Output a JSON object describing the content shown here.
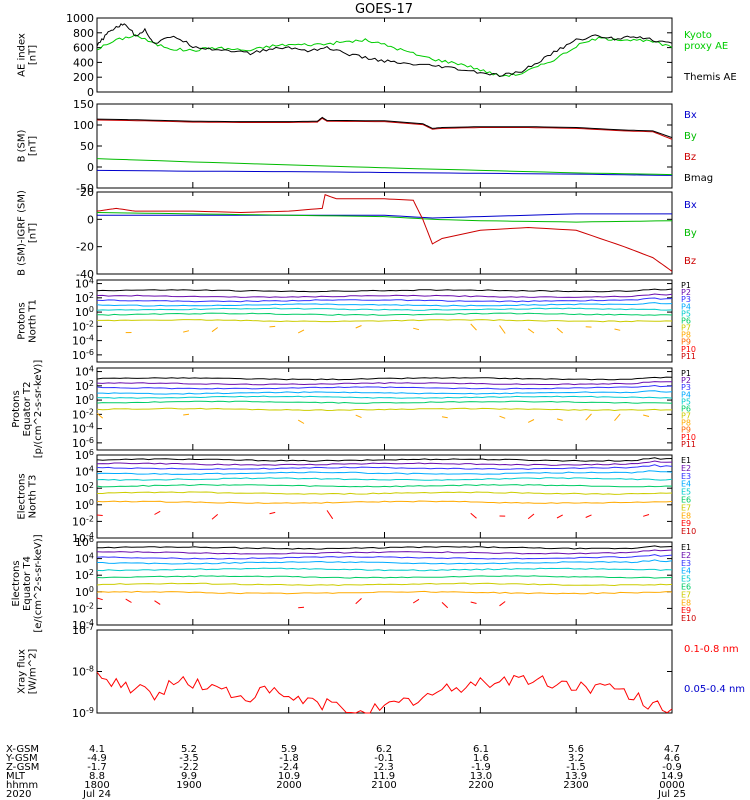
{
  "chart_data": {
    "type": "line",
    "title": "GOES-17",
    "time_range_hours": [
      18.0,
      24.0
    ],
    "panels": [
      {
        "id": "ae",
        "ylabel": [
          "AE index",
          "[nT]"
        ],
        "scale": "linear",
        "ylim": [
          0,
          1000
        ],
        "ticks": [
          0,
          200,
          400,
          600,
          800,
          1000
        ],
        "tick_labels": [
          "0",
          "200",
          "400",
          "600",
          "800",
          "1000"
        ],
        "legend": [
          {
            "label": "Kyoto",
            "color": "#00cc00"
          },
          {
            "label": "proxy AE",
            "color": "#00cc00"
          },
          {
            "label": "Themis AE",
            "color": "#000000"
          }
        ],
        "series": [
          {
            "name": "Kyoto proxy AE",
            "color": "#00cc00",
            "x": [
              18.0,
              18.2,
              18.4,
              18.6,
              18.8,
              19.0,
              19.2,
              19.4,
              19.6,
              19.8,
              20.0,
              20.2,
              20.4,
              20.6,
              20.8,
              21.0,
              21.2,
              21.4,
              21.6,
              21.8,
              22.0,
              22.2,
              22.4,
              22.6,
              22.8,
              23.0,
              23.2,
              23.4,
              23.6,
              23.8,
              24.0
            ],
            "y": [
              580,
              700,
              770,
              650,
              580,
              560,
              600,
              580,
              560,
              620,
              640,
              640,
              650,
              680,
              700,
              640,
              560,
              480,
              420,
              380,
              300,
              220,
              240,
              340,
              460,
              620,
              720,
              720,
              700,
              680,
              600
            ]
          },
          {
            "name": "Themis AE",
            "color": "#000000",
            "x": [
              18.0,
              18.1,
              18.2,
              18.3,
              18.4,
              18.5,
              18.6,
              18.8,
              19.0,
              19.2,
              19.4,
              19.6,
              19.8,
              20.0,
              20.2,
              20.4,
              20.6,
              20.8,
              21.0,
              21.2,
              21.4,
              21.6,
              21.8,
              22.0,
              22.2,
              22.4,
              22.6,
              22.8,
              23.0,
              23.2,
              23.4,
              23.6,
              23.8,
              24.0
            ],
            "y": [
              620,
              780,
              880,
              920,
              760,
              840,
              650,
              760,
              620,
              580,
              560,
              520,
              580,
              600,
              560,
              600,
              520,
              460,
              420,
              380,
              360,
              340,
              300,
              260,
              220,
              260,
              400,
              560,
              700,
              760,
              720,
              760,
              700,
              660
            ]
          }
        ]
      },
      {
        "id": "b",
        "ylabel": [
          "B (SM)",
          "[nT]"
        ],
        "scale": "linear",
        "ylim": [
          -50,
          150
        ],
        "ticks": [
          -50,
          0,
          50,
          100,
          150
        ],
        "tick_labels": [
          "-50",
          "0",
          "50",
          "100",
          "150"
        ],
        "legend": [
          {
            "label": "Bx",
            "color": "#0000cc"
          },
          {
            "label": "By",
            "color": "#00bb00"
          },
          {
            "label": "Bz",
            "color": "#cc0000"
          },
          {
            "label": "Bmag",
            "color": "#000000"
          }
        ],
        "series": [
          {
            "name": "Bx",
            "color": "#0000cc",
            "x": [
              18.0,
              19.0,
              20.0,
              21.0,
              22.0,
              23.0,
              24.0
            ],
            "y": [
              -8,
              -10,
              -11,
              -13,
              -15,
              -17,
              -20
            ]
          },
          {
            "name": "By",
            "color": "#00bb00",
            "x": [
              18.0,
              19.0,
              20.0,
              21.0,
              22.0,
              23.0,
              24.0
            ],
            "y": [
              20,
              12,
              5,
              -2,
              -8,
              -14,
              -18
            ]
          },
          {
            "name": "Bz",
            "color": "#cc0000",
            "x": [
              18.0,
              18.5,
              19.0,
              19.5,
              20.0,
              20.3,
              20.35,
              20.4,
              21.0,
              21.4,
              21.5,
              21.6,
              22.0,
              22.5,
              23.0,
              23.5,
              23.8,
              24.0
            ],
            "y": [
              112,
              110,
              107,
              106,
              106,
              107,
              116,
              109,
              108,
              101,
              90,
              92,
              94,
              94,
              92,
              86,
              84,
              66
            ]
          },
          {
            "name": "Bmag",
            "color": "#000000",
            "x": [
              18.0,
              18.5,
              19.0,
              19.5,
              20.0,
              20.3,
              20.35,
              20.4,
              21.0,
              21.4,
              21.5,
              21.6,
              22.0,
              22.5,
              23.0,
              23.5,
              23.8,
              24.0
            ],
            "y": [
              114,
              112,
              109,
              108,
              108,
              109,
              118,
              111,
              110,
              103,
              92,
              94,
              96,
              96,
              94,
              88,
              86,
              70
            ]
          }
        ]
      },
      {
        "id": "bdiff",
        "ylabel": [
          "B (SM)-IGRF (SM)",
          "[nT]"
        ],
        "scale": "linear",
        "ylim": [
          -40,
          20
        ],
        "ticks": [
          -40,
          -20,
          0,
          20
        ],
        "tick_labels": [
          "-40",
          "-20",
          "0",
          "20"
        ],
        "legend": [
          {
            "label": "Bx",
            "color": "#0000cc"
          },
          {
            "label": "By",
            "color": "#00bb00"
          },
          {
            "label": "Bz",
            "color": "#cc0000"
          }
        ],
        "series": [
          {
            "name": "Bx",
            "color": "#0000cc",
            "x": [
              18.0,
              19.0,
              20.0,
              21.0,
              21.5,
              22.0,
              23.0,
              24.0
            ],
            "y": [
              3,
              3,
              3,
              3,
              1,
              2,
              4,
              4
            ]
          },
          {
            "name": "By",
            "color": "#00bb00",
            "x": [
              18.0,
              19.0,
              20.0,
              21.0,
              21.5,
              22.0,
              23.0,
              24.0
            ],
            "y": [
              5,
              4,
              3,
              2,
              0,
              -1,
              -2,
              -1
            ]
          },
          {
            "name": "Bz",
            "color": "#cc0000",
            "x": [
              18.0,
              18.2,
              18.4,
              19.0,
              19.5,
              20.0,
              20.35,
              20.38,
              20.5,
              21.0,
              21.3,
              21.4,
              21.5,
              21.6,
              22.0,
              22.5,
              23.0,
              23.5,
              23.8,
              24.0
            ],
            "y": [
              6,
              8,
              6,
              6,
              5,
              6,
              8,
              18,
              15,
              15,
              14,
              0,
              -18,
              -14,
              -8,
              -6,
              -8,
              -20,
              -28,
              -38
            ]
          }
        ]
      },
      {
        "id": "p_north",
        "ylabel": [
          "Protons",
          "North T1"
        ],
        "scale": "log",
        "ylim_log10": [
          -7,
          4.5
        ],
        "ticks": [
          4,
          2,
          0,
          -2,
          -4,
          -6
        ],
        "tick_labels": [
          "10^4",
          "10^2",
          "10^0",
          "10^-2",
          "10^-4",
          "10^-6"
        ],
        "legend": [
          {
            "label": "P1",
            "color": "#000000"
          },
          {
            "label": "P2",
            "color": "#6a0dad"
          },
          {
            "label": "P3",
            "color": "#3333ff"
          },
          {
            "label": "P4",
            "color": "#00aaff"
          },
          {
            "label": "P5",
            "color": "#00cccc"
          },
          {
            "label": "P6",
            "color": "#00cc66"
          },
          {
            "label": "P7",
            "color": "#cccc00"
          },
          {
            "label": "P8",
            "color": "#ffaa00"
          },
          {
            "label": "P9",
            "color": "#ff6600"
          },
          {
            "label": "P10",
            "color": "#ff0000"
          },
          {
            "label": "P11",
            "color": "#cc0000"
          }
        ],
        "levels_log10": [
          3.0,
          2.2,
          1.6,
          1.0,
          0.4,
          -0.3,
          -1.2,
          -2.3
        ]
      },
      {
        "id": "p_equator",
        "ylabel": [
          "Protons",
          "Equator T2",
          "[p/(cm^2-s-sr-keV)]"
        ],
        "scale": "log",
        "ylim_log10": [
          -7,
          4.5
        ],
        "ticks": [
          4,
          2,
          0,
          -2,
          -4,
          -6
        ],
        "tick_labels": [
          "10^4",
          "10^2",
          "10^0",
          "10^-2",
          "10^-4",
          "10^-6"
        ],
        "legend": [
          {
            "label": "P1",
            "color": "#000000"
          },
          {
            "label": "P2",
            "color": "#6a0dad"
          },
          {
            "label": "P3",
            "color": "#3333ff"
          },
          {
            "label": "P4",
            "color": "#00aaff"
          },
          {
            "label": "P5",
            "color": "#00cccc"
          },
          {
            "label": "P6",
            "color": "#00cc66"
          },
          {
            "label": "P7",
            "color": "#cccc00"
          },
          {
            "label": "P8",
            "color": "#ffaa00"
          },
          {
            "label": "P9",
            "color": "#ff6600"
          },
          {
            "label": "P10",
            "color": "#ff0000"
          },
          {
            "label": "P11",
            "color": "#cc0000"
          }
        ],
        "levels_log10": [
          3.0,
          2.3,
          1.7,
          1.0,
          0.4,
          -0.3,
          -1.3,
          -2.5
        ]
      },
      {
        "id": "e_north",
        "ylabel": [
          "Electrons",
          "North T3"
        ],
        "scale": "log",
        "ylim_log10": [
          -4,
          6
        ],
        "ticks": [
          6,
          4,
          2,
          0,
          -2,
          -4
        ],
        "tick_labels": [
          "10^6",
          "10^4",
          "10^2",
          "10^0",
          "10^-2",
          "10^-4"
        ],
        "legend": [
          {
            "label": "E1",
            "color": "#000000"
          },
          {
            "label": "E2",
            "color": "#6a0dad"
          },
          {
            "label": "E3",
            "color": "#3333ff"
          },
          {
            "label": "E4",
            "color": "#00aaff"
          },
          {
            "label": "E5",
            "color": "#00cccc"
          },
          {
            "label": "E6",
            "color": "#00cc66"
          },
          {
            "label": "E7",
            "color": "#cccc00"
          },
          {
            "label": "E8",
            "color": "#ffaa00"
          },
          {
            "label": "E9",
            "color": "#ff0000"
          },
          {
            "label": "E10",
            "color": "#cc0000"
          }
        ],
        "levels_log10": [
          5.4,
          4.9,
          4.4,
          3.8,
          3.1,
          2.3,
          1.4,
          0.3,
          -1.2
        ]
      },
      {
        "id": "e_equator",
        "ylabel": [
          "Electrons",
          "Equator T4",
          "[e/(cm^2-s-sr-keV)]"
        ],
        "scale": "log",
        "ylim_log10": [
          -4,
          6
        ],
        "ticks": [
          6,
          4,
          2,
          0,
          -2,
          -4
        ],
        "tick_labels": [
          "10^6",
          "10^4",
          "10^2",
          "10^0",
          "10^-2",
          "10^-4"
        ],
        "legend": [
          {
            "label": "E1",
            "color": "#000000"
          },
          {
            "label": "E2",
            "color": "#6a0dad"
          },
          {
            "label": "E3",
            "color": "#3333ff"
          },
          {
            "label": "E4",
            "color": "#00aaff"
          },
          {
            "label": "E5",
            "color": "#00cccc"
          },
          {
            "label": "E6",
            "color": "#00cc66"
          },
          {
            "label": "E7",
            "color": "#cccc00"
          },
          {
            "label": "E8",
            "color": "#ffaa00"
          },
          {
            "label": "E9",
            "color": "#ff0000"
          },
          {
            "label": "E10",
            "color": "#cc0000"
          }
        ],
        "levels_log10": [
          5.3,
          4.7,
          4.1,
          3.5,
          2.7,
          1.8,
          0.9,
          -0.1,
          -1.4
        ]
      },
      {
        "id": "xray",
        "ylabel": [
          "Xray flux",
          "[W/m^2]"
        ],
        "scale": "log",
        "ylim_log10": [
          -9,
          -7
        ],
        "ticks": [
          -7,
          -8,
          -9
        ],
        "tick_labels": [
          "10^-7",
          "10^-8",
          "10^-9"
        ],
        "legend": [
          {
            "label": "0.1-0.8 nm",
            "color": "#ff0000"
          },
          {
            "label": "0.05-0.4 nm",
            "color": "#0000cc"
          }
        ],
        "series": [
          {
            "name": "0.1-0.8 nm",
            "color": "#ff0000",
            "x": [
              18.0,
              18.3,
              18.6,
              18.9,
              19.2,
              19.5,
              19.8,
              20.1,
              20.4,
              20.7,
              21.0,
              21.3,
              21.6,
              21.9,
              22.2,
              22.5,
              22.8,
              23.1,
              23.4,
              23.7,
              24.0
            ],
            "y_log10": [
              -8.15,
              -8.3,
              -8.55,
              -8.2,
              -8.4,
              -8.6,
              -8.5,
              -8.7,
              -8.8,
              -8.95,
              -8.9,
              -8.7,
              -8.5,
              -8.3,
              -8.2,
              -8.2,
              -8.3,
              -8.35,
              -8.45,
              -8.7,
              -8.9
            ]
          }
        ]
      }
    ],
    "x_axis": {
      "rows": [
        {
          "label": "X-GSM",
          "values": [
            "4.1",
            "5.2",
            "5.9",
            "6.2",
            "6.1",
            "5.6",
            "4.7"
          ]
        },
        {
          "label": "Y-GSM",
          "values": [
            "-4.9",
            "-3.5",
            "-1.8",
            "-0.1",
            "1.6",
            "3.2",
            "4.6"
          ]
        },
        {
          "label": "Z-GSM",
          "values": [
            "-1.7",
            "-2.2",
            "-2.4",
            "-2.3",
            "-1.9",
            "-1.5",
            "-0.9"
          ]
        },
        {
          "label": "MLT",
          "values": [
            "8.8",
            "9.9",
            "10.9",
            "11.9",
            "13.0",
            "13.9",
            "14.9"
          ]
        },
        {
          "label": "hhmm",
          "values": [
            "1800",
            "1900",
            "2000",
            "2100",
            "2200",
            "2300",
            "0000"
          ]
        },
        {
          "label": "2020",
          "values": [
            "Jul 24",
            "",
            "",
            "",
            "",
            "",
            "Jul 25"
          ]
        }
      ]
    }
  }
}
